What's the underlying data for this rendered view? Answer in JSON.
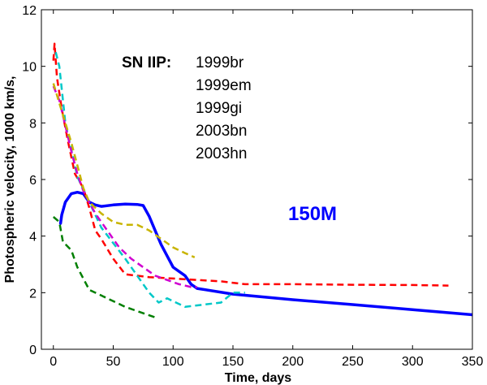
{
  "chart_data": {
    "type": "line",
    "title": "",
    "xlabel": "Time, days",
    "ylabel": "Photospheric velocity, 1000 km/s,",
    "xlim": [
      -10,
      350
    ],
    "ylim": [
      0,
      12
    ],
    "xticks": [
      0,
      50,
      100,
      150,
      200,
      250,
      300,
      350
    ],
    "yticks": [
      0,
      2,
      4,
      6,
      8,
      10,
      12
    ],
    "grid": false,
    "legend_title": "SN IIP:",
    "legend_entries": [
      "1999br",
      "1999em",
      "1999gi",
      "2003bn",
      "2003hn"
    ],
    "model_label": "150M",
    "colors": {
      "axis": "#000000",
      "model": "#0000ff",
      "red": "#ff0000",
      "cyan": "#00c8c8",
      "magenta": "#d000d0",
      "olive": "#c8b400",
      "green": "#007f00"
    },
    "series": [
      {
        "name": "150M model",
        "color": "#0000ff",
        "style": "solid",
        "x": [
          6,
          7,
          10,
          15,
          20,
          25,
          30,
          35,
          40,
          50,
          60,
          70,
          75,
          80,
          85,
          90,
          95,
          100,
          105,
          110,
          115,
          120,
          150,
          200,
          250,
          300,
          350
        ],
        "y": [
          4.45,
          4.75,
          5.2,
          5.5,
          5.55,
          5.5,
          5.2,
          5.1,
          5.05,
          5.1,
          5.13,
          5.12,
          5.08,
          4.7,
          4.2,
          3.7,
          3.3,
          2.9,
          2.75,
          2.6,
          2.3,
          2.15,
          1.95,
          1.75,
          1.58,
          1.4,
          1.22
        ]
      },
      {
        "name": "red dashed",
        "color": "#ff0000",
        "style": "dashed",
        "x": [
          0,
          1,
          3,
          7,
          12,
          18,
          25,
          30,
          35,
          40,
          50,
          60,
          80,
          100,
          120,
          140,
          160,
          200,
          250,
          300,
          330
        ],
        "y": [
          10.2,
          10.8,
          9.6,
          8.5,
          7.4,
          6.2,
          5.7,
          5.0,
          4.2,
          3.9,
          3.2,
          2.65,
          2.55,
          2.5,
          2.45,
          2.4,
          2.3,
          2.3,
          2.28,
          2.27,
          2.25
        ]
      },
      {
        "name": "cyan dashed",
        "color": "#00c8c8",
        "style": "dashed",
        "x": [
          2,
          5,
          10,
          20,
          30,
          40,
          60,
          70,
          80,
          88,
          95,
          110,
          120,
          140,
          150,
          160
        ],
        "y": [
          10.5,
          10.0,
          8.0,
          6.1,
          5.2,
          4.3,
          3.2,
          2.6,
          2.0,
          1.65,
          1.8,
          1.5,
          1.55,
          1.65,
          2.0,
          2.0
        ]
      },
      {
        "name": "magenta dashed",
        "color": "#d000d0",
        "style": "dashed",
        "x": [
          0,
          5,
          10,
          15,
          20,
          25,
          35,
          45,
          55,
          65,
          75,
          85,
          95,
          105,
          115,
          120
        ],
        "y": [
          9.3,
          8.8,
          7.9,
          7.0,
          6.2,
          5.6,
          4.8,
          4.2,
          3.6,
          3.2,
          2.9,
          2.6,
          2.45,
          2.3,
          2.2,
          2.2
        ]
      },
      {
        "name": "olive dashed",
        "color": "#c8b400",
        "style": "dashed",
        "x": [
          0,
          5,
          10,
          15,
          20,
          25,
          30,
          40,
          50,
          60,
          70,
          80,
          90,
          100,
          110,
          118
        ],
        "y": [
          9.4,
          8.7,
          8.0,
          7.3,
          6.5,
          5.7,
          5.2,
          4.8,
          4.5,
          4.4,
          4.4,
          4.2,
          3.9,
          3.6,
          3.4,
          3.25
        ]
      },
      {
        "name": "green dashed",
        "color": "#007f00",
        "style": "dashed",
        "x": [
          0,
          5,
          8,
          15,
          20,
          30,
          40,
          50,
          60,
          70,
          80,
          87
        ],
        "y": [
          4.68,
          4.5,
          3.8,
          3.5,
          2.9,
          2.1,
          1.9,
          1.7,
          1.5,
          1.35,
          1.2,
          1.1
        ]
      }
    ]
  }
}
